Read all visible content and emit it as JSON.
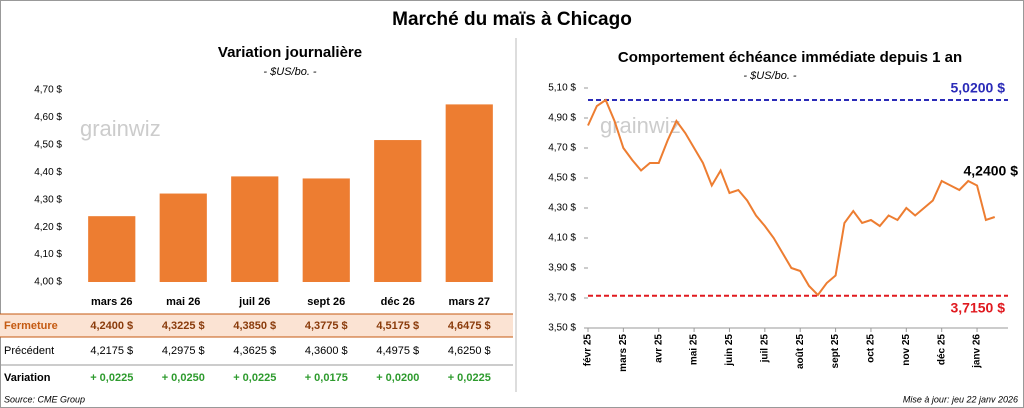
{
  "title": "Marché du maïs à Chicago",
  "watermark": "grainwiz",
  "chart_data": [
    {
      "type": "bar",
      "title": "Variation journalière",
      "subtitle": "- $US/bo. -",
      "categories": [
        "mars 26",
        "mai 26",
        "juil 26",
        "sept 26",
        "déc 26",
        "mars 27"
      ],
      "values": [
        4.24,
        4.3225,
        4.385,
        4.3775,
        4.5175,
        4.6475
      ],
      "value_labels": [
        "4,2400 $",
        "4,3225 $",
        "4,3850 $",
        "4,3775 $",
        "4,5175 $",
        "4,6475 $"
      ],
      "color": "#ed7d31",
      "ylim": [
        4.0,
        4.7
      ],
      "yticks": [
        {
          "value": 4.0,
          "label": "4,00 $"
        },
        {
          "value": 4.1,
          "label": "4,10 $"
        },
        {
          "value": 4.2,
          "label": "4,20 $"
        },
        {
          "value": 4.3,
          "label": "4,30 $"
        },
        {
          "value": 4.4,
          "label": "4,40 $"
        },
        {
          "value": 4.5,
          "label": "4,50 $"
        },
        {
          "value": 4.6,
          "label": "4,60 $"
        },
        {
          "value": 4.7,
          "label": "4,70 $"
        }
      ]
    },
    {
      "type": "line",
      "title": "Comportement échéance immédiate depuis 1 an",
      "subtitle": "- $US/bo. -",
      "categories": [
        "févr 25",
        null,
        null,
        null,
        "mars 25",
        null,
        null,
        null,
        "avr 25",
        null,
        null,
        null,
        "mai 25",
        null,
        null,
        null,
        "juin 25",
        null,
        null,
        null,
        "juil 25",
        null,
        null,
        null,
        "août 25",
        null,
        null,
        null,
        "sept 25",
        null,
        null,
        null,
        "oct 25",
        null,
        null,
        null,
        "nov 25",
        null,
        null,
        null,
        "déc 25",
        null,
        null,
        null,
        "janv 26",
        null,
        null
      ],
      "series": [
        {
          "name": "Échéance immédiate",
          "color": "#ed7d31",
          "values": [
            4.85,
            4.98,
            5.02,
            4.88,
            4.7,
            4.62,
            4.55,
            4.6,
            4.6,
            4.75,
            4.88,
            4.8,
            4.7,
            4.6,
            4.45,
            4.55,
            4.4,
            4.42,
            4.35,
            4.25,
            4.18,
            4.1,
            4.0,
            3.9,
            3.88,
            3.78,
            3.72,
            3.8,
            3.85,
            4.2,
            4.28,
            4.2,
            4.22,
            4.18,
            4.25,
            4.22,
            4.3,
            4.25,
            4.3,
            4.35,
            4.48,
            4.45,
            4.42,
            4.48,
            4.45,
            4.22,
            4.24
          ]
        }
      ],
      "reference_lines": [
        {
          "value": 5.02,
          "label": "5,0200 $",
          "color": "#2b2bb8"
        },
        {
          "value": 3.715,
          "label": "3,7150 $",
          "color": "#e0191f"
        }
      ],
      "annotations": [
        {
          "text": "4,2400 $",
          "value": 4.24
        }
      ],
      "ylim": [
        3.5,
        5.1
      ],
      "yticks": [
        {
          "value": 3.5,
          "label": "3,50 $"
        },
        {
          "value": 3.7,
          "label": "3,70 $"
        },
        {
          "value": 3.9,
          "label": "3,90 $"
        },
        {
          "value": 4.1,
          "label": "4,10 $"
        },
        {
          "value": 4.3,
          "label": "4,30 $"
        },
        {
          "value": 4.5,
          "label": "4,50 $"
        },
        {
          "value": 4.7,
          "label": "4,70 $"
        },
        {
          "value": 4.9,
          "label": "4,90 $"
        },
        {
          "value": 5.1,
          "label": "5,10 $"
        }
      ]
    }
  ],
  "table": {
    "row_labels": [
      "Fermeture",
      "Précédent",
      "Variation"
    ],
    "previous": [
      "4,2175 $",
      "4,2975 $",
      "4,3625 $",
      "4,3600 $",
      "4,4975 $",
      "4,6250 $"
    ],
    "change": [
      "+ 0,0225",
      "+ 0,0250",
      "+ 0,0225",
      "+ 0,0175",
      "+ 0,0200",
      "+ 0,0225"
    ]
  },
  "source": "Source: CME Group",
  "updated": "Mise à jour: jeu 22 janv 2026"
}
